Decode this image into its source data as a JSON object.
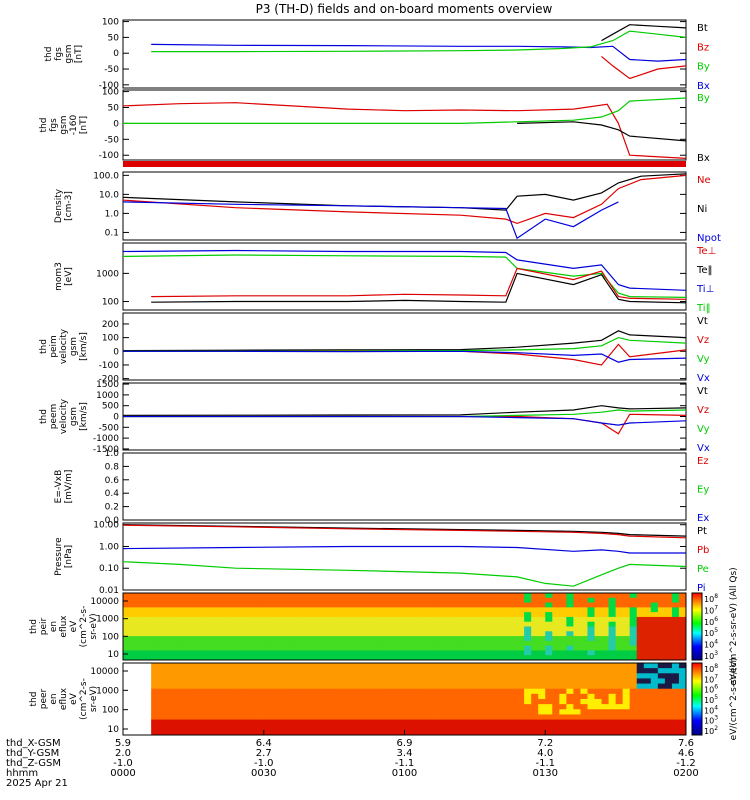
{
  "title": "P3 (TH-D) fields and on-board moments overview",
  "footer_date": "2025 Apr 21",
  "colors": {
    "black": "#000000",
    "red": "#dd0000",
    "green": "#00cc00",
    "blue": "#0000dd"
  },
  "chart_data": [
    {
      "type": "line",
      "ylabel": [
        "thd",
        "fgs",
        "gsm",
        "[nT]"
      ],
      "yticks": [
        "100",
        "50",
        "0",
        "-50",
        "-100"
      ],
      "ylim": [
        -110,
        105
      ],
      "legend": [
        {
          "label": "Bt",
          "color": "black"
        },
        {
          "label": "Bz",
          "color": "red"
        },
        {
          "label": "By",
          "color": "green"
        },
        {
          "label": "Bx",
          "color": "blue"
        }
      ],
      "series": [
        {
          "color": "blue",
          "x": [
            0.05,
            0.2,
            0.4,
            0.6,
            0.7,
            0.78,
            0.83,
            0.87,
            0.9,
            0.95,
            1.0
          ],
          "y": [
            28,
            25,
            24,
            22,
            22,
            20,
            18,
            22,
            -20,
            -25,
            -20
          ]
        },
        {
          "color": "green",
          "x": [
            0.05,
            0.2,
            0.4,
            0.6,
            0.7,
            0.78,
            0.83,
            0.87,
            0.9,
            0.95,
            1.0
          ],
          "y": [
            5,
            5,
            6,
            8,
            10,
            15,
            20,
            40,
            70,
            60,
            50
          ]
        },
        {
          "color": "red",
          "x": [
            0.85,
            0.87,
            0.9,
            0.95,
            1.0
          ],
          "y": [
            -10,
            -40,
            -80,
            -50,
            -40
          ]
        },
        {
          "color": "black",
          "x": [
            0.85,
            0.87,
            0.9,
            0.95,
            1.0
          ],
          "y": [
            40,
            60,
            90,
            85,
            80
          ]
        }
      ]
    },
    {
      "type": "line",
      "ylabel": [
        "thd",
        "fgs",
        "gsm",
        "-160",
        "[nT]"
      ],
      "yticks": [
        "100",
        "50",
        "0",
        "-50",
        "-100"
      ],
      "ylim": [
        -115,
        105
      ],
      "legend": [
        {
          "label": "By",
          "color": "green"
        },
        {
          "label": "Bx",
          "color": "black"
        }
      ],
      "series": [
        {
          "color": "red",
          "x": [
            0.0,
            0.1,
            0.2,
            0.3,
            0.4,
            0.5,
            0.6,
            0.7,
            0.8,
            0.86,
            0.88,
            0.9,
            1.0
          ],
          "y": [
            55,
            62,
            65,
            55,
            45,
            40,
            42,
            40,
            45,
            60,
            0,
            -100,
            -110
          ]
        },
        {
          "color": "green",
          "x": [
            0.0,
            0.2,
            0.4,
            0.6,
            0.7,
            0.8,
            0.85,
            0.88,
            0.9,
            1.0
          ],
          "y": [
            0,
            0,
            0,
            0,
            5,
            10,
            20,
            40,
            70,
            80
          ]
        },
        {
          "color": "black",
          "x": [
            0.7,
            0.8,
            0.85,
            0.88,
            0.9,
            1.0
          ],
          "y": [
            0,
            5,
            -5,
            -20,
            -40,
            -55
          ]
        }
      ]
    },
    {
      "type": "line",
      "scale": "log",
      "ylabel": [
        "Density",
        "[cm-3]"
      ],
      "yticks": [
        "100.0",
        "10.0",
        "1.0",
        "0.1"
      ],
      "ylim": [
        0.04,
        150
      ],
      "legend": [
        {
          "label": "Ne",
          "color": "red"
        },
        {
          "label": "Ni",
          "color": "black"
        },
        {
          "label": "Npot",
          "color": "blue"
        }
      ],
      "series": [
        {
          "color": "black",
          "x": [
            0.0,
            0.2,
            0.4,
            0.6,
            0.68,
            0.7,
            0.75,
            0.8,
            0.85,
            0.88,
            0.92,
            1.0
          ],
          "y": [
            7,
            4,
            2.5,
            2,
            1.5,
            8,
            10,
            5,
            12,
            40,
            90,
            120
          ]
        },
        {
          "color": "red",
          "x": [
            0.0,
            0.2,
            0.4,
            0.6,
            0.68,
            0.7,
            0.75,
            0.8,
            0.85,
            0.88,
            0.92,
            1.0
          ],
          "y": [
            5,
            2,
            1.2,
            0.8,
            0.5,
            0.3,
            1.0,
            0.6,
            3,
            20,
            60,
            100
          ]
        },
        {
          "color": "blue",
          "x": [
            0.0,
            0.2,
            0.4,
            0.6,
            0.68,
            0.7,
            0.75,
            0.8,
            0.85,
            0.88
          ],
          "y": [
            4,
            3,
            2.5,
            2,
            1.8,
            0.05,
            0.5,
            0.2,
            1.5,
            4
          ]
        }
      ]
    },
    {
      "type": "line",
      "scale": "log",
      "ylabel": [
        "mom3",
        "[eV]"
      ],
      "yticks": [
        "1000",
        "100"
      ],
      "ylim": [
        50,
        12000
      ],
      "legend": [
        {
          "label": "Te⊥",
          "color": "red"
        },
        {
          "label": "Te‖",
          "color": "black"
        },
        {
          "label": "Ti⊥",
          "color": "blue"
        },
        {
          "label": "Ti‖",
          "color": "green"
        }
      ],
      "series": [
        {
          "color": "blue",
          "x": [
            0.0,
            0.2,
            0.4,
            0.6,
            0.68,
            0.7,
            0.8,
            0.85,
            0.88,
            0.9,
            1.0
          ],
          "y": [
            6000,
            6500,
            6000,
            6000,
            5500,
            3000,
            1500,
            2000,
            400,
            300,
            250
          ]
        },
        {
          "color": "green",
          "x": [
            0.0,
            0.2,
            0.4,
            0.6,
            0.68,
            0.7,
            0.8,
            0.85,
            0.88,
            0.9,
            1.0
          ],
          "y": [
            4000,
            4500,
            4200,
            4000,
            3800,
            1500,
            800,
            1000,
            200,
            150,
            140
          ]
        },
        {
          "color": "red",
          "x": [
            0.05,
            0.2,
            0.4,
            0.5,
            0.6,
            0.68,
            0.7,
            0.8,
            0.85,
            0.88,
            0.9,
            1.0
          ],
          "y": [
            150,
            160,
            160,
            180,
            170,
            160,
            1500,
            600,
            1200,
            150,
            130,
            120
          ]
        },
        {
          "color": "black",
          "x": [
            0.05,
            0.2,
            0.4,
            0.5,
            0.6,
            0.68,
            0.7,
            0.8,
            0.85,
            0.88,
            0.9,
            1.0
          ],
          "y": [
            95,
            100,
            100,
            110,
            100,
            95,
            1000,
            400,
            900,
            120,
            100,
            90
          ]
        }
      ]
    },
    {
      "type": "line",
      "ylabel": [
        "thd",
        "peim",
        "velocity",
        "gsm",
        "[km/s]"
      ],
      "yticks": [
        "200",
        "100",
        "0",
        "-100",
        "-200"
      ],
      "ylim": [
        -210,
        280
      ],
      "legend": [
        {
          "label": "Vt",
          "color": "black"
        },
        {
          "label": "Vz",
          "color": "red"
        },
        {
          "label": "Vy",
          "color": "green"
        },
        {
          "label": "Vx",
          "color": "blue"
        }
      ],
      "series": [
        {
          "color": "black",
          "x": [
            0.0,
            0.2,
            0.4,
            0.6,
            0.7,
            0.8,
            0.85,
            0.88,
            0.9,
            1.0
          ],
          "y": [
            5,
            8,
            10,
            12,
            30,
            60,
            80,
            150,
            120,
            100
          ]
        },
        {
          "color": "red",
          "x": [
            0.0,
            0.2,
            0.4,
            0.6,
            0.7,
            0.8,
            0.85,
            0.88,
            0.9,
            1.0
          ],
          "y": [
            0,
            0,
            5,
            0,
            -20,
            -60,
            -100,
            50,
            -40,
            10
          ]
        },
        {
          "color": "green",
          "x": [
            0.0,
            0.2,
            0.4,
            0.6,
            0.7,
            0.8,
            0.85,
            0.88,
            0.9,
            1.0
          ],
          "y": [
            0,
            0,
            2,
            5,
            10,
            20,
            40,
            100,
            80,
            60
          ]
        },
        {
          "color": "blue",
          "x": [
            0.0,
            0.2,
            0.4,
            0.6,
            0.7,
            0.8,
            0.85,
            0.88,
            0.9,
            1.0
          ],
          "y": [
            0,
            0,
            -2,
            0,
            -10,
            -30,
            -20,
            -80,
            -60,
            -50
          ]
        }
      ]
    },
    {
      "type": "line",
      "ylabel": [
        "thd",
        "peem",
        "velocity",
        "gsm",
        "[km/s]"
      ],
      "yticks": [
        "1500",
        "1000",
        "500",
        "0",
        "-500",
        "-1000",
        "-1500"
      ],
      "ylim": [
        -1550,
        1550
      ],
      "legend": [
        {
          "label": "Vt",
          "color": "black"
        },
        {
          "label": "Vz",
          "color": "red"
        },
        {
          "label": "Vy",
          "color": "green"
        },
        {
          "label": "Vx",
          "color": "blue"
        }
      ],
      "series": [
        {
          "color": "black",
          "x": [
            0.0,
            0.2,
            0.4,
            0.6,
            0.7,
            0.8,
            0.85,
            0.88,
            0.9,
            1.0
          ],
          "y": [
            50,
            60,
            70,
            80,
            200,
            300,
            500,
            400,
            350,
            400
          ]
        },
        {
          "color": "red",
          "x": [
            0.0,
            0.2,
            0.4,
            0.6,
            0.7,
            0.8,
            0.85,
            0.88,
            0.9,
            1.0
          ],
          "y": [
            0,
            0,
            0,
            0,
            0,
            -100,
            -300,
            -800,
            100,
            50
          ]
        },
        {
          "color": "green",
          "x": [
            0.0,
            0.2,
            0.4,
            0.6,
            0.7,
            0.8,
            0.85,
            0.88,
            0.9,
            1.0
          ],
          "y": [
            0,
            0,
            0,
            0,
            50,
            100,
            200,
            300,
            250,
            300
          ]
        },
        {
          "color": "blue",
          "x": [
            0.0,
            0.2,
            0.4,
            0.6,
            0.7,
            0.8,
            0.85,
            0.88,
            0.9,
            1.0
          ],
          "y": [
            0,
            0,
            0,
            0,
            -50,
            -100,
            -300,
            -400,
            -300,
            -200
          ]
        }
      ]
    },
    {
      "type": "line",
      "ylabel": [
        "E=-VxB",
        "[mV/m]"
      ],
      "yticks": [
        "1.0",
        "0.8",
        "0.6",
        "0.4",
        "0.2",
        "0.0"
      ],
      "ylim": [
        0,
        1
      ],
      "legend": [
        {
          "label": "Ez",
          "color": "red"
        },
        {
          "label": "Ey",
          "color": "green"
        },
        {
          "label": "Ex",
          "color": "blue"
        }
      ],
      "series": []
    },
    {
      "type": "line",
      "scale": "log",
      "ylabel": [
        "Pressure",
        "[nPa]"
      ],
      "yticks": [
        "10.00",
        "1.00",
        "0.10",
        "0.01"
      ],
      "ylim": [
        0.01,
        12
      ],
      "legend": [
        {
          "label": "Pt",
          "color": "black"
        },
        {
          "label": "Pb",
          "color": "red"
        },
        {
          "label": "Pe",
          "color": "green"
        },
        {
          "label": "Pi",
          "color": "blue"
        }
      ],
      "series": [
        {
          "color": "black",
          "x": [
            0.0,
            0.2,
            0.4,
            0.6,
            0.7,
            0.8,
            0.85,
            0.88,
            0.9,
            1.0
          ],
          "y": [
            10,
            8.5,
            7,
            6,
            5.5,
            5,
            4.5,
            4,
            3.5,
            3
          ]
        },
        {
          "color": "red",
          "x": [
            0.0,
            0.2,
            0.4,
            0.6,
            0.7,
            0.8,
            0.85,
            0.88,
            0.9,
            1.0
          ],
          "y": [
            9.5,
            8,
            6.5,
            5.5,
            5,
            4.5,
            4,
            3.5,
            3,
            2.5
          ]
        },
        {
          "color": "blue",
          "x": [
            0.0,
            0.2,
            0.4,
            0.6,
            0.7,
            0.8,
            0.85,
            0.88,
            0.9,
            1.0
          ],
          "y": [
            0.8,
            0.9,
            1.0,
            1.0,
            0.9,
            0.6,
            0.7,
            0.6,
            0.5,
            0.5
          ]
        },
        {
          "color": "green",
          "x": [
            0.0,
            0.1,
            0.2,
            0.4,
            0.6,
            0.7,
            0.75,
            0.8,
            0.85,
            0.88,
            0.9,
            1.0
          ],
          "y": [
            0.2,
            0.15,
            0.1,
            0.08,
            0.06,
            0.04,
            0.02,
            0.015,
            0.05,
            0.1,
            0.15,
            0.12
          ]
        }
      ]
    },
    {
      "type": "heatmap",
      "ylabel": [
        "thd",
        "peir",
        "en",
        "eflux",
        "eV",
        "(cm^2-s-",
        "sr-eV)"
      ],
      "yticks": [
        "10000",
        "1000",
        "100",
        "10"
      ],
      "colorbar": {
        "ticks": [
          "10^8",
          "10^7",
          "10^6",
          "10^5",
          "10^4",
          "10^3"
        ],
        "label": "eV/(cm^2-s-sr-eV) (All Qs)"
      }
    },
    {
      "type": "heatmap",
      "ylabel": [
        "thd",
        "peer",
        "en",
        "eflux",
        "eV",
        "(cm^2-s-",
        "sr-eV)"
      ],
      "yticks": [
        "10000",
        "1000",
        "100",
        "10"
      ],
      "colorbar": {
        "ticks": [
          "10^8",
          "10^7",
          "10^6",
          "10^5",
          "10^4",
          "10^3",
          "10^2"
        ],
        "label": "eV/(cm^2-s-sr-eV)"
      }
    }
  ],
  "xaxis": {
    "row_labels": [
      "thd_X-GSM",
      "thd_Y-GSM",
      "thd_Z-GSM",
      "hhmm"
    ],
    "columns": [
      [
        "5.9",
        "2.0",
        "-1.0",
        "0000"
      ],
      [
        "6.4",
        "2.7",
        "-1.0",
        "0030"
      ],
      [
        "6.9",
        "3.4",
        "-1.1",
        "0100"
      ],
      [
        "7.2",
        "4.0",
        "-1.1",
        "0130"
      ],
      [
        "7.6",
        "4.6",
        "-1.2",
        "0200"
      ]
    ]
  }
}
